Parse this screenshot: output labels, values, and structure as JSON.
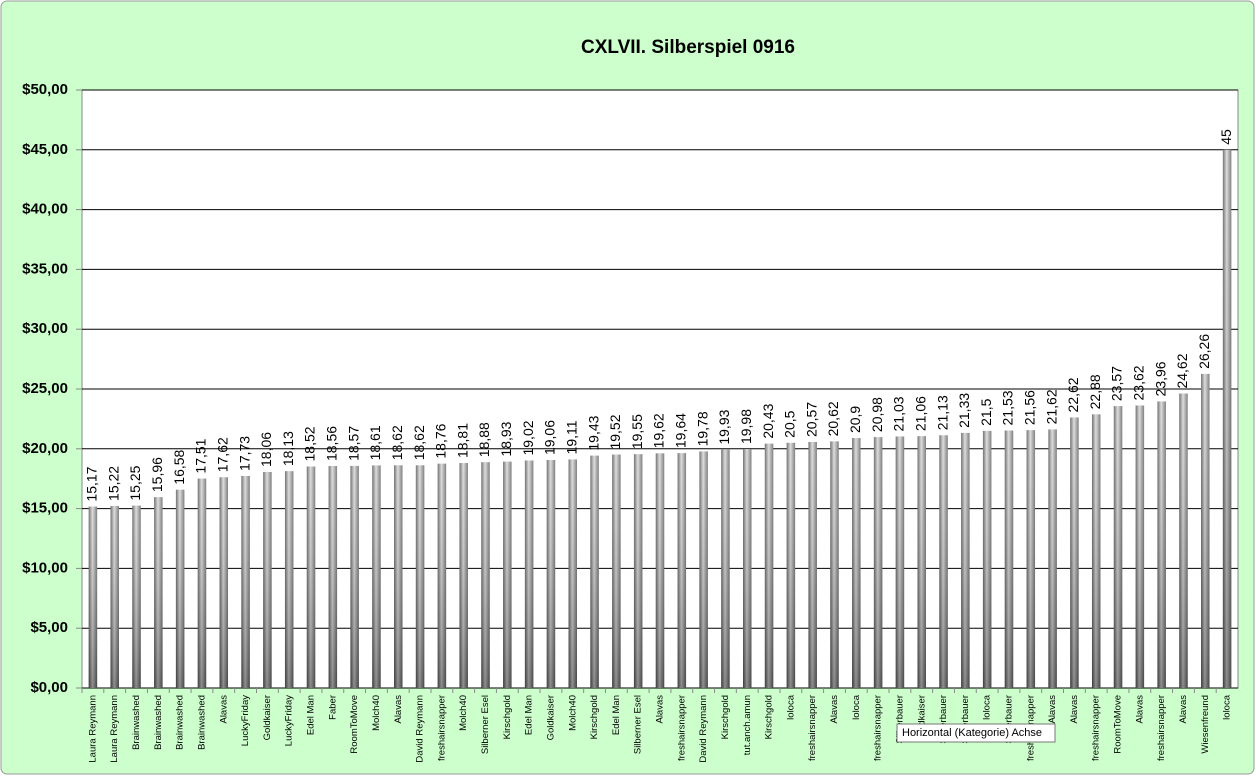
{
  "chart_data": {
    "type": "bar",
    "title": "CXLVII. Silberspiel 0916",
    "categories": [
      "Laura Reymann",
      "Laura Reymann",
      "Brainwashed",
      "Brainwashed",
      "Brainwashed",
      "Brainwashed",
      "Alavas",
      "LuckyFriday",
      "Goldkaiser",
      "LuckyFriday",
      "Edel Man",
      "Faber",
      "RoomToMove",
      "Molch40",
      "Alavas",
      "David Reymann",
      "freshairsnapper",
      "Molch40",
      "Silberner Esel",
      "Kirschgold",
      "Edel Man",
      "Goldkaiser",
      "Molch40",
      "Kirschgold",
      "Edel Man",
      "Silberner Esel",
      "Alavas",
      "freshairsnapper",
      "David Reymann",
      "Kirschgold",
      "tut.anch.amun",
      "Kirschgold",
      "loloca",
      "freshairsnapper",
      "Alavas",
      "loloca",
      "freshairsnapper",
      "Silberbauer",
      "Goldkaiser",
      "Silberbauer",
      "Silberbauer",
      "loloca",
      "Silberbauer",
      "freshairsnapper",
      "Alavas",
      "Alavas",
      "freshairsnapper",
      "RoomToMove",
      "Alavas",
      "freshairsnapper",
      "Alavas",
      "Wiesenfreund",
      "loloca"
    ],
    "values": [
      15.17,
      15.22,
      15.25,
      15.96,
      16.58,
      17.51,
      17.62,
      17.73,
      18.06,
      18.13,
      18.52,
      18.56,
      18.57,
      18.61,
      18.62,
      18.62,
      18.76,
      18.81,
      18.88,
      18.93,
      19.02,
      19.06,
      19.11,
      19.43,
      19.52,
      19.55,
      19.62,
      19.64,
      19.78,
      19.93,
      19.98,
      20.43,
      20.5,
      20.57,
      20.62,
      20.9,
      20.98,
      21.03,
      21.06,
      21.13,
      21.33,
      21.5,
      21.53,
      21.56,
      21.62,
      22.62,
      22.88,
      23.57,
      23.62,
      23.96,
      24.62,
      26.26,
      45
    ],
    "value_labels": [
      "15,17",
      "15,22",
      "15,25",
      "15,96",
      "16,58",
      "17,51",
      "17,62",
      "17,73",
      "18,06",
      "18,13",
      "18,52",
      "18,56",
      "18,57",
      "18,61",
      "18,62",
      "18,62",
      "18,76",
      "18,81",
      "18,88",
      "18,93",
      "19,02",
      "19,06",
      "19,11",
      "19,43",
      "19,52",
      "19,55",
      "19,62",
      "19,64",
      "19,78",
      "19,93",
      "19,98",
      "20,43",
      "20,5",
      "20,57",
      "20,62",
      "20,9",
      "20,98",
      "21,03",
      "21,06",
      "21,13",
      "21,33",
      "21,5",
      "21,53",
      "21,56",
      "21,62",
      "22,62",
      "22,88",
      "23,57",
      "23,62",
      "23,96",
      "24,62",
      "26,26",
      "45"
    ],
    "color": "#808080",
    "ylim": [
      0,
      50
    ],
    "yticks": [
      {
        "value": 0,
        "label": "$0,00"
      },
      {
        "value": 5,
        "label": "$5,00"
      },
      {
        "value": 10,
        "label": "$10,00"
      },
      {
        "value": 15,
        "label": "$15,00"
      },
      {
        "value": 20,
        "label": "$20,00"
      },
      {
        "value": 25,
        "label": "$25,00"
      },
      {
        "value": 30,
        "label": "$30,00"
      },
      {
        "value": 35,
        "label": "$35,00"
      },
      {
        "value": 40,
        "label": "$40,00"
      },
      {
        "value": 45,
        "label": "$45,00"
      },
      {
        "value": 50,
        "label": "$50,00"
      }
    ],
    "grid": true
  },
  "tooltip": "Horizontal (Kategorie) Achse"
}
